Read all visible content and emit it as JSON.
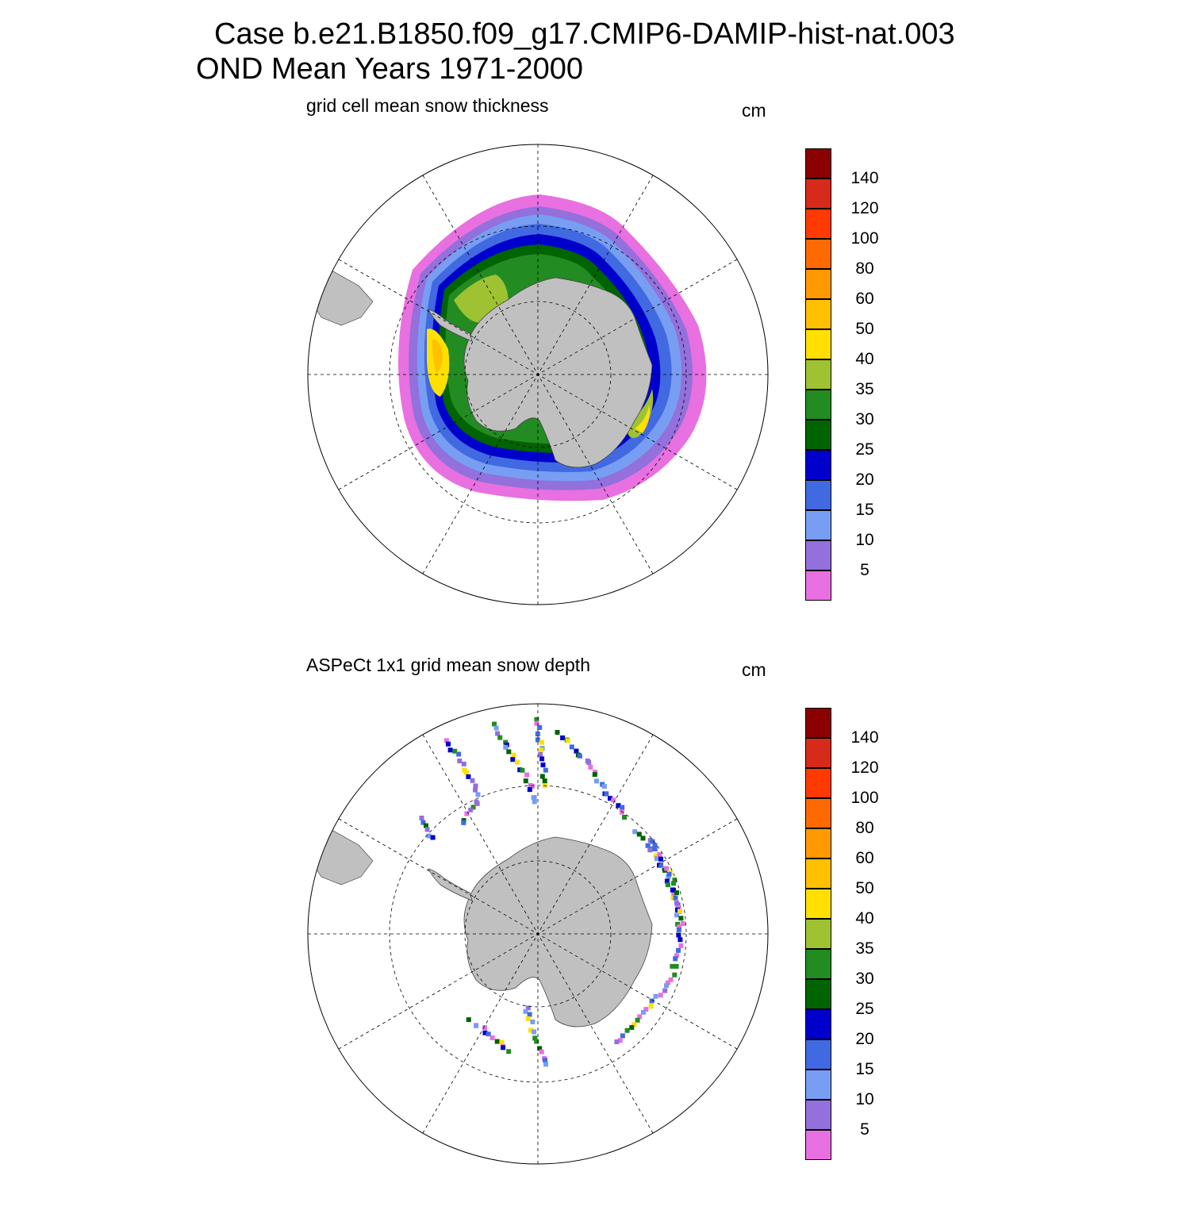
{
  "header": {
    "line1": "Case b.e21.B1850.f09_g17.CMIP6-DAMIP-hist-nat.003",
    "line2": "OND Mean   Years 1971-2000"
  },
  "panels": [
    {
      "title": "grid cell mean snow thickness",
      "units": "cm",
      "kind": "model"
    },
    {
      "title": "ASPeCt 1x1 grid mean snow depth",
      "units": "cm",
      "kind": "obs"
    }
  ],
  "colorbar": {
    "labels": [
      "140",
      "120",
      "100",
      "80",
      "60",
      "50",
      "40",
      "35",
      "30",
      "25",
      "20",
      "15",
      "10",
      "5"
    ],
    "colors": [
      "#8b0000",
      "#d62a1a",
      "#ff3a00",
      "#ff6a00",
      "#ff9900",
      "#ffc000",
      "#ffe000",
      "#9ec232",
      "#228b22",
      "#006400",
      "#0000cd",
      "#4169e1",
      "#779ef2",
      "#9370db",
      "#e870e0"
    ]
  },
  "map": {
    "land_color": "#c0c0c0",
    "projection": "south-polar-stereographic"
  }
}
